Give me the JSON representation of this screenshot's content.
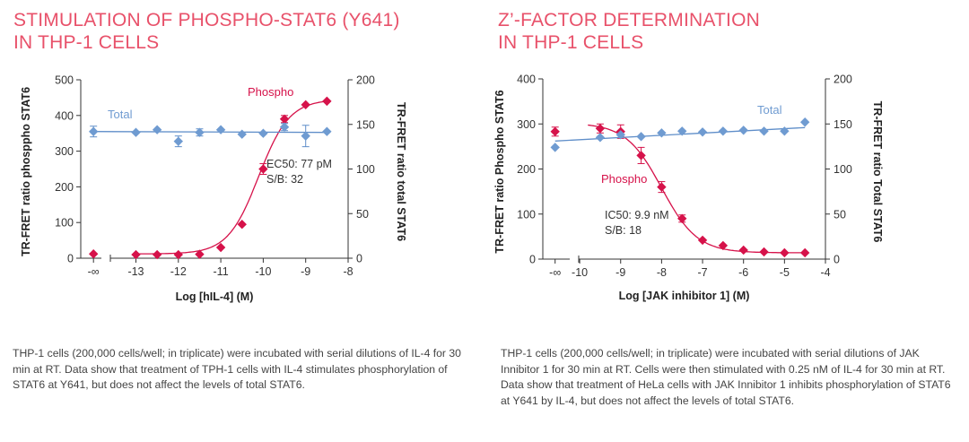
{
  "colors": {
    "title": "#e8516a",
    "phospho": "#d6124a",
    "total": "#6f9bd1",
    "total_line": "#5f8ec9",
    "axis": "#333333"
  },
  "panels": [
    {
      "title_lines": [
        "STIMULATION OF PHOSPHO-STAT6 (Y641)",
        "IN THP-1 CELLS"
      ],
      "caption": "THP-1 cells (200,000 cells/well; in triplicate) were incubated with serial dilutions of IL-4 for 30 min at RT. Data show that treatment of TPH-1 cells with IL-4  stimulates phosphorylation of STAT6 at Y641, but does not affect the levels of total STAT6.",
      "annotation": [
        "EC50: 77 pM",
        "S/B: 32"
      ]
    },
    {
      "title_lines": [
        "Z’-FACTOR DETERMINATION",
        "IN THP-1 CELLS"
      ],
      "caption": "THP-1 cells (200,000 cells/well; in triplicate) were incubated with serial dilutions of JAK Innibitor 1 for 30 min at RT. Cells were then stimulated with 0.25 nM of IL-4 for 30 min at RT. Data show that treatment of HeLa cells with JAK Innibitor 1 inhibits phosphorylation of STAT6 at Y641 by IL-4, but does not affect the levels of total STAT6.",
      "annotation": [
        "IC50: 9.9 nM",
        "S/B: 18"
      ]
    }
  ],
  "chart_data": [
    {
      "type": "scatter",
      "title": "STIMULATION OF PHOSPHO-STAT6 (Y641) IN THP-1 CELLS",
      "xlabel": "Log [hIL-4] (M)",
      "ylabel": "TR-FRET ratio phosppho  STAT6",
      "y2label": "TR-FRET ratio total STAT6",
      "x_ticks": [
        "-∞",
        "-13",
        "-12",
        "-11",
        "-10",
        "-9",
        "-8"
      ],
      "x_tick_values": [
        -14,
        -13,
        -12,
        -11,
        -10,
        -9,
        -8
      ],
      "xlim": [
        -14.3,
        -8
      ],
      "ylim": [
        0,
        500
      ],
      "y_ticks": [
        "0",
        "100",
        "200",
        "300",
        "400",
        "500"
      ],
      "y2lim": [
        0,
        200
      ],
      "y2_ticks": [
        "0",
        "50",
        "100",
        "150",
        "200"
      ],
      "grid": false,
      "series": [
        {
          "name": "Phospho",
          "axis": "left",
          "marker": "diamond",
          "color": "#d6124a",
          "fit": "sigmoid",
          "fit_params": {
            "bottom": 12,
            "top": 445,
            "ec50_log": -10.11,
            "hill": 1.2
          },
          "x": [
            -14,
            -13,
            -12.5,
            -12,
            -11.5,
            -11,
            -10.5,
            -10,
            -9.5,
            -9,
            -8.5
          ],
          "y": [
            12,
            10,
            10,
            10,
            11,
            30,
            95,
            250,
            390,
            430,
            440
          ],
          "err": [
            0,
            0,
            0,
            0,
            0,
            0,
            0,
            15,
            10,
            0,
            0
          ]
        },
        {
          "name": "Total",
          "axis": "right",
          "marker": "diamond",
          "color": "#6f9bd1",
          "fit": "linear",
          "fit_params": {
            "y_start": 142,
            "y_end": 141
          },
          "x": [
            -14,
            -13,
            -12.5,
            -12,
            -11.5,
            -11,
            -10.5,
            -10,
            -9.5,
            -9,
            -8.5
          ],
          "y": [
            142,
            141,
            144,
            131,
            141,
            144,
            139,
            140,
            147,
            137,
            142
          ],
          "err": [
            6,
            0,
            0,
            6,
            4,
            0,
            0,
            0,
            4,
            12,
            0
          ]
        }
      ]
    },
    {
      "type": "scatter",
      "title": "Z’-FACTOR DETERMINATION IN THP-1 CELLS",
      "xlabel": "Log [JAK inhibitor 1] (M)",
      "ylabel": "TR-FRET ratio Phospho  STAT6",
      "y2label": "TR-FRET ratio Total STAT6",
      "x_ticks": [
        "-∞",
        "-10",
        "-9",
        "-8",
        "-7",
        "-6",
        "-5",
        "-4"
      ],
      "x_tick_values": [
        -10.6,
        -10,
        -9,
        -8,
        -7,
        -6,
        -5,
        -4
      ],
      "xlim": [
        -10.9,
        -4
      ],
      "ylim": [
        0,
        400
      ],
      "y_ticks": [
        "0",
        "100",
        "200",
        "300",
        "400"
      ],
      "y2lim": [
        0,
        200
      ],
      "y2_ticks": [
        "0",
        "50",
        "100",
        "150",
        "200"
      ],
      "grid": false,
      "series": [
        {
          "name": "Phospho",
          "axis": "left",
          "marker": "diamond",
          "color": "#d6124a",
          "fit": "sigmoid",
          "fit_params": {
            "bottom": 14,
            "top": 302,
            "ec50_log": -8.0,
            "hill": -1.0,
            "x_start": -9.8
          },
          "x": [
            -10.6,
            -9.5,
            -9,
            -8.5,
            -8,
            -7.5,
            -7,
            -6.5,
            -6,
            -5.5,
            -5,
            -4.5
          ],
          "y": [
            283,
            290,
            283,
            230,
            160,
            90,
            42,
            30,
            20,
            16,
            14,
            14
          ],
          "err": [
            10,
            10,
            15,
            18,
            12,
            8,
            0,
            0,
            0,
            0,
            0,
            0
          ]
        },
        {
          "name": "Total",
          "axis": "right",
          "marker": "diamond",
          "color": "#6f9bd1",
          "fit": "linear",
          "fit_params": {
            "y_start": 131,
            "y_end": 146,
            "x_start": -10.6,
            "x_end": -4.5
          },
          "x": [
            -10.6,
            -9.5,
            -9,
            -8.5,
            -8,
            -7.5,
            -7,
            -6.5,
            -6,
            -5.5,
            -5,
            -4.5
          ],
          "y": [
            124,
            135,
            138,
            136,
            140,
            142,
            141,
            142,
            143,
            142,
            142,
            152
          ],
          "err": [
            0,
            0,
            0,
            0,
            0,
            0,
            0,
            0,
            0,
            0,
            0,
            0
          ]
        }
      ]
    }
  ]
}
